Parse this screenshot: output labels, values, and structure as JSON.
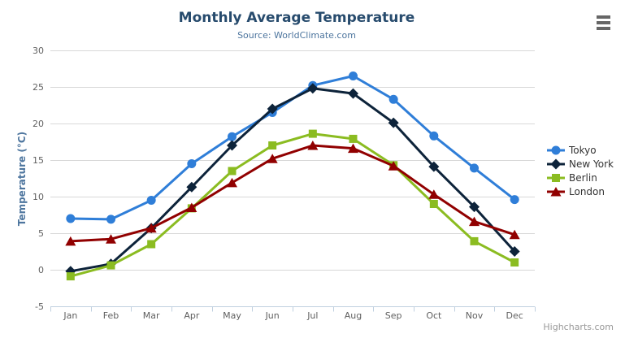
{
  "chart_data": {
    "type": "line",
    "title": "Monthly Average Temperature",
    "subtitle": "Source: WorldClimate.com",
    "xlabel": "",
    "ylabel": "Temperature (°C)",
    "ylim": [
      -5,
      30
    ],
    "yticks": [
      -5,
      0,
      5,
      10,
      15,
      20,
      25,
      30
    ],
    "categories": [
      "Jan",
      "Feb",
      "Mar",
      "Apr",
      "May",
      "Jun",
      "Jul",
      "Aug",
      "Sep",
      "Oct",
      "Nov",
      "Dec"
    ],
    "grid": "horizontal",
    "legend_position": "right",
    "series": [
      {
        "name": "Tokyo",
        "color": "#2f7ed8",
        "marker": "circle",
        "values": [
          7.0,
          6.9,
          9.5,
          14.5,
          18.2,
          21.5,
          25.2,
          26.5,
          23.3,
          18.3,
          13.9,
          9.6
        ]
      },
      {
        "name": "New York",
        "color": "#0d233a",
        "marker": "diamond",
        "values": [
          -0.2,
          0.8,
          5.7,
          11.3,
          17.0,
          22.0,
          24.8,
          24.1,
          20.1,
          14.1,
          8.6,
          2.5
        ]
      },
      {
        "name": "Berlin",
        "color": "#8bbc21",
        "marker": "square",
        "values": [
          -0.9,
          0.6,
          3.5,
          8.4,
          13.5,
          17.0,
          18.6,
          17.9,
          14.3,
          9.0,
          3.9,
          1.0
        ]
      },
      {
        "name": "London",
        "color": "#910000",
        "marker": "triangle",
        "values": [
          3.9,
          4.2,
          5.7,
          8.5,
          11.9,
          15.2,
          17.0,
          16.6,
          14.2,
          10.3,
          6.6,
          4.8
        ]
      }
    ]
  },
  "credits": {
    "label": "Highcharts.com"
  },
  "export_menu": {
    "icon": "hamburger-icon"
  },
  "colors": {
    "title": "#274b6d",
    "subtitle": "#4d759e",
    "axis_title": "#4d759e",
    "tick_label": "#606060",
    "grid_line": "#d8d8d8",
    "axis_line": "#c0d0e0",
    "legend_text": "#333333",
    "credits": "#999999",
    "menu_icon": "#666666",
    "background": "#ffffff"
  }
}
